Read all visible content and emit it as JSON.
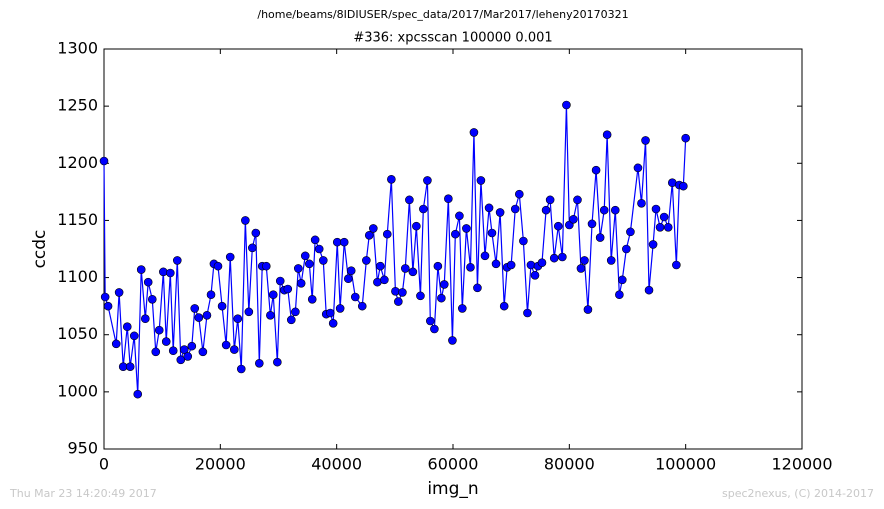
{
  "chart_data": {
    "type": "line",
    "title": "/home/beams/8IDIUSER/spec_data/2017/Mar2017/leheny20170321",
    "subtitle": "#336: xpcsscan 100000 0.001",
    "x_label": "img_n",
    "y_label": "ccdc",
    "xlim": [
      0,
      120000
    ],
    "ylim": [
      950,
      1300
    ],
    "xticks": [
      0,
      20000,
      40000,
      60000,
      80000,
      100000,
      120000
    ],
    "yticks": [
      950,
      1000,
      1050,
      1100,
      1150,
      1200,
      1250,
      1300
    ],
    "grid": false,
    "series": [
      {
        "color": "#0000ff",
        "x": [
          0,
          200,
          700,
          2100,
          2600,
          3300,
          4000,
          4500,
          5200,
          5800,
          6400,
          7100,
          7600,
          8300,
          8900,
          9500,
          10200,
          10700,
          11400,
          11900,
          12600,
          13200,
          13800,
          14400,
          15100,
          15600,
          16300,
          17000,
          17700,
          18400,
          18900,
          19600,
          20300,
          21000,
          21700,
          22400,
          23000,
          23600,
          24300,
          24900,
          25500,
          26100,
          26700,
          27200,
          27900,
          28600,
          29100,
          29800,
          30300,
          31000,
          31600,
          32200,
          32900,
          33400,
          33900,
          34600,
          35300,
          35800,
          36300,
          37000,
          37700,
          38200,
          38900,
          39400,
          40100,
          40600,
          41300,
          42000,
          42500,
          43200,
          44400,
          45100,
          45600,
          46300,
          47000,
          47500,
          48200,
          48700,
          49400,
          50100,
          50600,
          51300,
          51800,
          52500,
          53100,
          53700,
          54400,
          54900,
          55600,
          56100,
          56800,
          57400,
          58000,
          58500,
          59200,
          59900,
          60400,
          61100,
          61600,
          62300,
          63000,
          63600,
          64200,
          64800,
          65500,
          66200,
          66700,
          67400,
          68100,
          68800,
          69300,
          70000,
          70700,
          71400,
          72100,
          72800,
          73400,
          74100,
          74600,
          75300,
          76000,
          76700,
          77400,
          78100,
          78800,
          79500,
          80000,
          80700,
          81400,
          82000,
          82600,
          83200,
          83900,
          84600,
          85300,
          86000,
          86500,
          87200,
          87900,
          88600,
          89100,
          89800,
          90500,
          91800,
          92400,
          93100,
          93700,
          94400,
          94900,
          95600,
          96300,
          97000,
          97700,
          98400,
          98900,
          99600,
          100000
        ],
        "values": [
          1202,
          1083,
          1075,
          1042,
          1087,
          1022,
          1057,
          1022,
          1049,
          998,
          1107,
          1064,
          1096,
          1081,
          1035,
          1054,
          1105,
          1044,
          1104,
          1036,
          1115,
          1028,
          1037,
          1031,
          1040,
          1073,
          1065,
          1035,
          1067,
          1085,
          1112,
          1110,
          1075,
          1041,
          1118,
          1037,
          1064,
          1020,
          1150,
          1070,
          1126,
          1139,
          1025,
          1110,
          1110,
          1067,
          1085,
          1026,
          1097,
          1089,
          1090,
          1063,
          1070,
          1108,
          1095,
          1119,
          1112,
          1081,
          1133,
          1125,
          1115,
          1068,
          1069,
          1060,
          1131,
          1073,
          1131,
          1099,
          1106,
          1083,
          1075,
          1115,
          1137,
          1143,
          1096,
          1110,
          1098,
          1138,
          1186,
          1088,
          1079,
          1087,
          1108,
          1168,
          1105,
          1145,
          1084,
          1160,
          1185,
          1062,
          1055,
          1110,
          1082,
          1094,
          1169,
          1045,
          1138,
          1154,
          1073,
          1143,
          1109,
          1227,
          1091,
          1185,
          1119,
          1161,
          1139,
          1112,
          1157,
          1075,
          1109,
          1111,
          1160,
          1173,
          1132,
          1069,
          1111,
          1102,
          1110,
          1113,
          1159,
          1168,
          1117,
          1145,
          1118,
          1251,
          1146,
          1151,
          1168,
          1108,
          1115,
          1072,
          1147,
          1194,
          1135,
          1159,
          1225,
          1115,
          1159,
          1085,
          1098,
          1125,
          1140,
          1196,
          1165,
          1220,
          1089,
          1129,
          1160,
          1144,
          1153,
          1144,
          1183,
          1111,
          1181,
          1180,
          1222
        ]
      }
    ]
  },
  "footer": {
    "left": "Thu Mar 23 14:20:49 2017",
    "right": "spec2nexus, (C) 2014-2017"
  }
}
